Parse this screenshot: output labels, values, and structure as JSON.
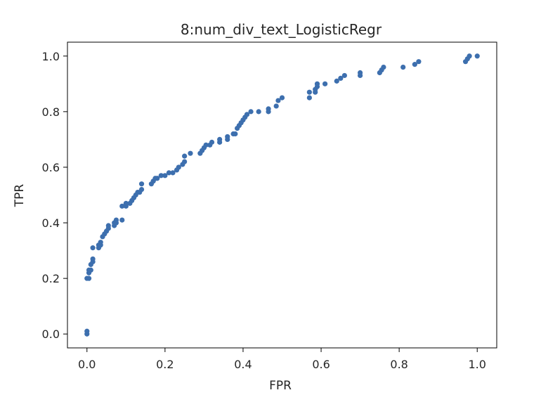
{
  "chart_data": {
    "type": "scatter",
    "title": "8:num_div_text_LogisticRegr",
    "xlabel": "FPR",
    "ylabel": "TPR",
    "xlim": [
      -0.05,
      1.05
    ],
    "ylim": [
      -0.05,
      1.05
    ],
    "grid": false,
    "xticks": [
      0.0,
      0.2,
      0.4,
      0.6,
      0.8,
      1.0
    ],
    "yticks": [
      0.0,
      0.2,
      0.4,
      0.6,
      0.8,
      1.0
    ],
    "xtick_labels": [
      "0.0",
      "0.2",
      "0.4",
      "0.6",
      "0.8",
      "1.0"
    ],
    "ytick_labels": [
      "0.0",
      "0.2",
      "0.4",
      "0.6",
      "0.8",
      "1.0"
    ],
    "marker_color": "#3d6fae",
    "series": [
      {
        "points": [
          [
            0.0,
            0.0
          ],
          [
            0.0,
            0.01
          ],
          [
            0.0,
            0.2
          ],
          [
            0.005,
            0.2
          ],
          [
            0.005,
            0.22
          ],
          [
            0.005,
            0.23
          ],
          [
            0.01,
            0.23
          ],
          [
            0.01,
            0.25
          ],
          [
            0.015,
            0.26
          ],
          [
            0.015,
            0.27
          ],
          [
            0.015,
            0.31
          ],
          [
            0.03,
            0.31
          ],
          [
            0.03,
            0.32
          ],
          [
            0.035,
            0.32
          ],
          [
            0.035,
            0.33
          ],
          [
            0.04,
            0.35
          ],
          [
            0.045,
            0.36
          ],
          [
            0.05,
            0.37
          ],
          [
            0.055,
            0.38
          ],
          [
            0.055,
            0.39
          ],
          [
            0.07,
            0.39
          ],
          [
            0.07,
            0.4
          ],
          [
            0.075,
            0.4
          ],
          [
            0.075,
            0.41
          ],
          [
            0.09,
            0.41
          ],
          [
            0.09,
            0.46
          ],
          [
            0.1,
            0.46
          ],
          [
            0.1,
            0.47
          ],
          [
            0.11,
            0.47
          ],
          [
            0.115,
            0.48
          ],
          [
            0.12,
            0.49
          ],
          [
            0.125,
            0.5
          ],
          [
            0.13,
            0.51
          ],
          [
            0.135,
            0.51
          ],
          [
            0.14,
            0.52
          ],
          [
            0.14,
            0.54
          ],
          [
            0.165,
            0.54
          ],
          [
            0.17,
            0.55
          ],
          [
            0.175,
            0.56
          ],
          [
            0.18,
            0.56
          ],
          [
            0.19,
            0.57
          ],
          [
            0.2,
            0.57
          ],
          [
            0.21,
            0.58
          ],
          [
            0.22,
            0.58
          ],
          [
            0.23,
            0.59
          ],
          [
            0.235,
            0.6
          ],
          [
            0.245,
            0.61
          ],
          [
            0.25,
            0.62
          ],
          [
            0.25,
            0.64
          ],
          [
            0.265,
            0.65
          ],
          [
            0.29,
            0.65
          ],
          [
            0.295,
            0.66
          ],
          [
            0.3,
            0.67
          ],
          [
            0.305,
            0.68
          ],
          [
            0.315,
            0.68
          ],
          [
            0.32,
            0.69
          ],
          [
            0.34,
            0.69
          ],
          [
            0.34,
            0.7
          ],
          [
            0.36,
            0.7
          ],
          [
            0.36,
            0.71
          ],
          [
            0.375,
            0.72
          ],
          [
            0.38,
            0.72
          ],
          [
            0.385,
            0.74
          ],
          [
            0.39,
            0.75
          ],
          [
            0.395,
            0.76
          ],
          [
            0.4,
            0.77
          ],
          [
            0.405,
            0.78
          ],
          [
            0.41,
            0.79
          ],
          [
            0.42,
            0.8
          ],
          [
            0.44,
            0.8
          ],
          [
            0.465,
            0.8
          ],
          [
            0.465,
            0.81
          ],
          [
            0.485,
            0.82
          ],
          [
            0.49,
            0.84
          ],
          [
            0.5,
            0.85
          ],
          [
            0.57,
            0.85
          ],
          [
            0.57,
            0.87
          ],
          [
            0.585,
            0.87
          ],
          [
            0.585,
            0.88
          ],
          [
            0.59,
            0.89
          ],
          [
            0.59,
            0.9
          ],
          [
            0.61,
            0.9
          ],
          [
            0.64,
            0.91
          ],
          [
            0.65,
            0.92
          ],
          [
            0.66,
            0.93
          ],
          [
            0.7,
            0.93
          ],
          [
            0.7,
            0.94
          ],
          [
            0.75,
            0.94
          ],
          [
            0.755,
            0.95
          ],
          [
            0.76,
            0.96
          ],
          [
            0.81,
            0.96
          ],
          [
            0.84,
            0.97
          ],
          [
            0.85,
            0.98
          ],
          [
            0.97,
            0.98
          ],
          [
            0.975,
            0.99
          ],
          [
            0.98,
            1.0
          ],
          [
            1.0,
            1.0
          ]
        ]
      }
    ]
  }
}
